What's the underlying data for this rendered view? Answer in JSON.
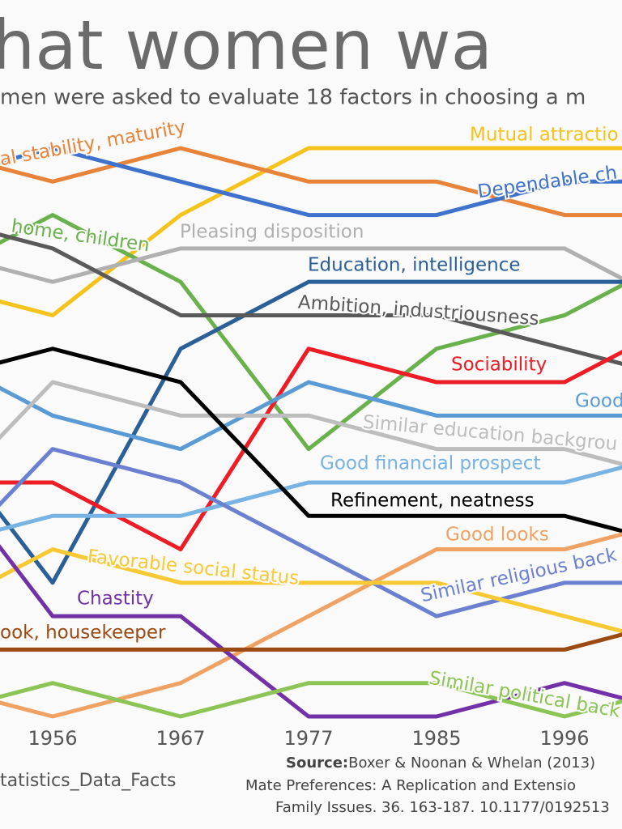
{
  "chart_data": {
    "type": "line",
    "title": "hat women wa",
    "subtitle": "men were asked to evaluate 18 factors in choosing a m",
    "categories": [
      null,
      "1956",
      "1967",
      "1977",
      "1985",
      "1996",
      null
    ],
    "ylim": [
      18,
      1
    ],
    "series": [
      {
        "name": "Mutual attractio",
        "color": "#f5c31c",
        "values": [
          5,
          6,
          3,
          1,
          1,
          1,
          1
        ]
      },
      {
        "name": "al stability, maturity",
        "color": "#e8833a",
        "values": [
          1,
          2,
          1,
          2,
          2,
          3,
          3
        ]
      },
      {
        "name": "Dependable ch",
        "color": "#3f72cc",
        "values": [
          2,
          1,
          2,
          3,
          3,
          2,
          2
        ]
      },
      {
        "name": "home, children",
        "color": "#6ab04c",
        "values": [
          5,
          3,
          5,
          10,
          7,
          6,
          4
        ]
      },
      {
        "name": "Pleasing disposition",
        "color": "#b0b0b0",
        "values": [
          4,
          5,
          4,
          4,
          4,
          4,
          6
        ]
      },
      {
        "name": "Education, intelligence",
        "color": "#2b5f97",
        "values": [
          9,
          14,
          7,
          5,
          5,
          5,
          5
        ]
      },
      {
        "name": "Ambition, industriousness",
        "color": "#5a5a5a",
        "values": [
          3,
          4,
          6,
          6,
          6,
          7,
          8
        ]
      },
      {
        "name": "Sociability",
        "color": "#ee1c25",
        "values": [
          11,
          11,
          13,
          7,
          8,
          8,
          6
        ]
      },
      {
        "name": "Good",
        "color": "#5b9bd5",
        "values": [
          7,
          9,
          10,
          8,
          9,
          9,
          9
        ]
      },
      {
        "name": "Similar education backgrou",
        "color": "#bdbdbd",
        "values": [
          12,
          8,
          9,
          9,
          10,
          10,
          11
        ]
      },
      {
        "name": "Good financial prospect",
        "color": "#79b3e3",
        "values": [
          13,
          12,
          12,
          11,
          11,
          11,
          10
        ]
      },
      {
        "name": "Refinement, neatness",
        "color": "#000000",
        "values": [
          8,
          7,
          8,
          12,
          12,
          12,
          13
        ]
      },
      {
        "name": "Good looks",
        "color": "#f0a264",
        "values": [
          17,
          18,
          17,
          15,
          13,
          13,
          12
        ]
      },
      {
        "name": "Similar religious back",
        "color": "#6b80d1",
        "values": [
          14,
          10,
          11,
          13,
          15,
          14,
          14
        ]
      },
      {
        "name": "Favorable social status",
        "color": "#f7c933",
        "values": [
          15,
          13,
          14,
          14,
          14,
          15,
          16
        ]
      },
      {
        "name": "Chastity",
        "color": "#7231a6",
        "values": [
          10,
          15,
          15,
          18,
          18,
          17,
          18
        ]
      },
      {
        "name": "ook, housekeeper",
        "color": "#9c4a14",
        "values": [
          16,
          16,
          16,
          16,
          16,
          16,
          15
        ]
      },
      {
        "name": "Similar political back",
        "color": "#8cc456",
        "values": [
          18,
          17,
          18,
          17,
          17,
          18,
          17
        ]
      }
    ],
    "watermark": "tatistics_Data_Facts",
    "source": [
      "Source:",
      "Boxer & Noonan & Whelan (2013)",
      "Mate Preferences:  A Replication and Extensio",
      "Family Issues. 36. 163-187. 10.1177/0192513"
    ]
  }
}
